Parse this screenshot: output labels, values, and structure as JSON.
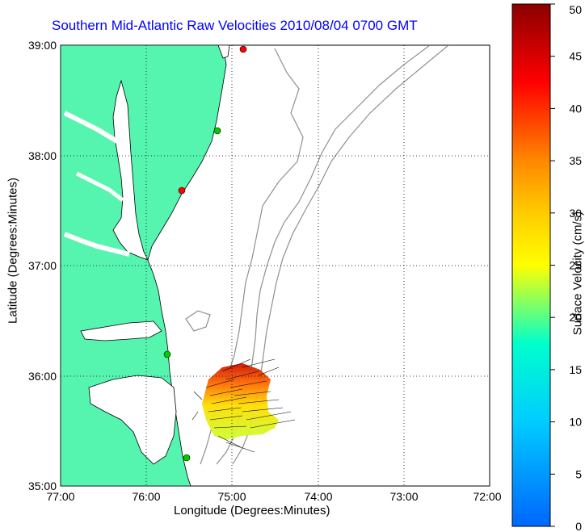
{
  "title": "Southern Mid-Atlantic Raw Velocities 2010/08/04 0700 GMT",
  "xlabel": "Longitude (Degrees:Minutes)",
  "ylabel": "Latitude (Degrees:Minutes)",
  "colorbar_label": "Surface Velocity (cm/s)",
  "chart_data": {
    "type": "map",
    "x_ticks": [
      "77:00",
      "76:00",
      "75:00",
      "74:00",
      "73:00",
      "72:00"
    ],
    "y_ticks": [
      "39:00",
      "38:00",
      "37:00",
      "36:00",
      "35:00"
    ],
    "xlim": [
      -77,
      -72
    ],
    "ylim": [
      35,
      39
    ],
    "grid": "dotted",
    "colorbar": {
      "ticks": [
        0,
        5,
        10,
        15,
        20,
        25,
        30,
        35,
        40,
        45,
        50
      ],
      "range": [
        0,
        50
      ],
      "colormap": "jet"
    },
    "colors": {
      "land": "#55f5b0",
      "water": "#ffffff",
      "bathymetry": "#909090",
      "station_active": "#00cc00",
      "station_inactive": "#ff0000"
    }
  }
}
